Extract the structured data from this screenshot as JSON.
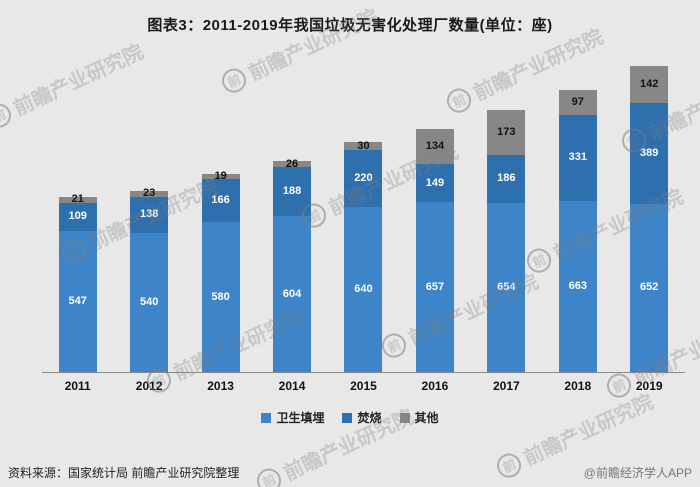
{
  "title": "图表3：2011-2019年我国垃圾无害化处理厂数量(单位：座)",
  "chart_data": {
    "type": "bar",
    "stacked": true,
    "title": "图表3：2011-2019年我国垃圾无害化处理厂数量(单位：座)",
    "categories": [
      "2011",
      "2012",
      "2013",
      "2014",
      "2015",
      "2016",
      "2017",
      "2018",
      "2019"
    ],
    "series": [
      {
        "name": "卫生填埋",
        "color": "#3d85c8",
        "label_color": "#ffffff",
        "values": [
          547,
          540,
          580,
          604,
          640,
          657,
          654,
          663,
          652
        ]
      },
      {
        "name": "焚烧",
        "color": "#2e6fae",
        "label_color": "#ffffff",
        "values": [
          109,
          138,
          166,
          188,
          220,
          149,
          186,
          331,
          389
        ]
      },
      {
        "name": "其他",
        "color": "#878787",
        "label_color": "#111111",
        "values": [
          21,
          23,
          19,
          26,
          30,
          134,
          173,
          97,
          142
        ]
      }
    ],
    "xlabel": "",
    "ylabel": "",
    "ylim": [
      0,
      1200
    ],
    "grid": false,
    "legend_position": "bottom"
  },
  "watermark": {
    "logo": "前",
    "text": "前瞻产业研究院"
  },
  "footer": {
    "source": "资料来源：国家统计局 前瞻产业研究院整理",
    "credit": "@前瞻经济学人APP"
  }
}
